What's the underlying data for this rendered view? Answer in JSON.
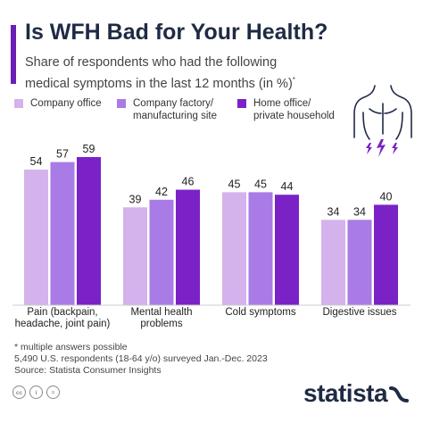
{
  "header": {
    "title": "Is WFH Bad for Your Health?",
    "subtitle": "Share of respondents who had the following medical symptoms in the last 12 months (in %)",
    "subtitle_mark": "*"
  },
  "colors": {
    "accent": "#6a1fb5",
    "series": [
      "#d4b3ec",
      "#a97be6",
      "#7a22c6"
    ],
    "brand": "#1f2a44"
  },
  "legend": [
    {
      "lines": [
        "Company office"
      ]
    },
    {
      "lines": [
        "Company factory/",
        "manufacturing site"
      ]
    },
    {
      "lines": [
        "Home office/",
        "private household"
      ]
    }
  ],
  "chart_data": {
    "type": "bar",
    "categories": [
      [
        "Pain (backpain,",
        "headache, joint pain)"
      ],
      [
        "Mental health",
        "problems"
      ],
      [
        "Cold symptoms"
      ],
      [
        "Digestive issues"
      ]
    ],
    "series": [
      {
        "name": "Company office",
        "values": [
          54,
          39,
          45,
          34
        ]
      },
      {
        "name": "Company factory/ manufacturing site",
        "values": [
          57,
          42,
          45,
          34
        ]
      },
      {
        "name": "Home office/ private household",
        "values": [
          59,
          46,
          44,
          40
        ]
      }
    ],
    "ylim": [
      0,
      59
    ],
    "grid": false,
    "legend_position": "top"
  },
  "footer": {
    "notes": [
      "* multiple answers possible",
      "5,490 U.S. respondents (18-64 y/o) surveyed Jan.-Dec. 2023",
      "Source: Statista Consumer Insights"
    ],
    "cc_icons": [
      "cc",
      "i",
      "="
    ],
    "brand": "statista"
  }
}
